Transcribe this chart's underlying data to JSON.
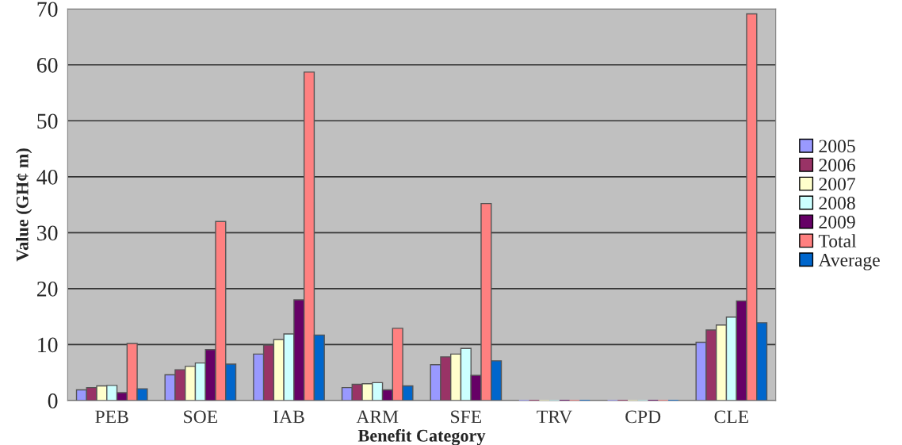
{
  "chart_data": {
    "type": "bar",
    "xlabel": "Benefit Category",
    "ylabel": "Value (GH¢ m)",
    "categories": [
      "PEB",
      "SOE",
      "IAB",
      "ARM",
      "SFE",
      "TRV",
      "CPD",
      "CLE"
    ],
    "series": [
      {
        "name": "2005",
        "color": "#9999ff",
        "values": [
          1.9,
          4.6,
          8.3,
          2.3,
          6.4,
          0,
          0,
          10.4
        ]
      },
      {
        "name": "2006",
        "color": "#993366",
        "values": [
          2.3,
          5.5,
          9.9,
          2.9,
          7.8,
          0,
          0,
          12.6
        ]
      },
      {
        "name": "2007",
        "color": "#ffffcc",
        "values": [
          2.6,
          6.1,
          10.9,
          3.0,
          8.3,
          0,
          0,
          13.5
        ]
      },
      {
        "name": "2008",
        "color": "#ccffff",
        "values": [
          2.7,
          6.7,
          11.9,
          3.2,
          9.3,
          0,
          0,
          14.9
        ]
      },
      {
        "name": "2009",
        "color": "#660066",
        "values": [
          1.4,
          9.1,
          18.0,
          1.9,
          4.5,
          0,
          0,
          17.8
        ]
      },
      {
        "name": "Total",
        "color": "#ff8080",
        "values": [
          10.2,
          32.0,
          58.7,
          12.9,
          35.2,
          0,
          0,
          69.1
        ]
      },
      {
        "name": "Average",
        "color": "#0066cc",
        "values": [
          2.1,
          6.5,
          11.7,
          2.6,
          7.1,
          0,
          0,
          13.9
        ]
      }
    ],
    "ylim": [
      0,
      70
    ],
    "yticks": [
      0,
      10,
      20,
      30,
      40,
      50,
      60,
      70
    ],
    "grid": "y",
    "legend": "right"
  }
}
